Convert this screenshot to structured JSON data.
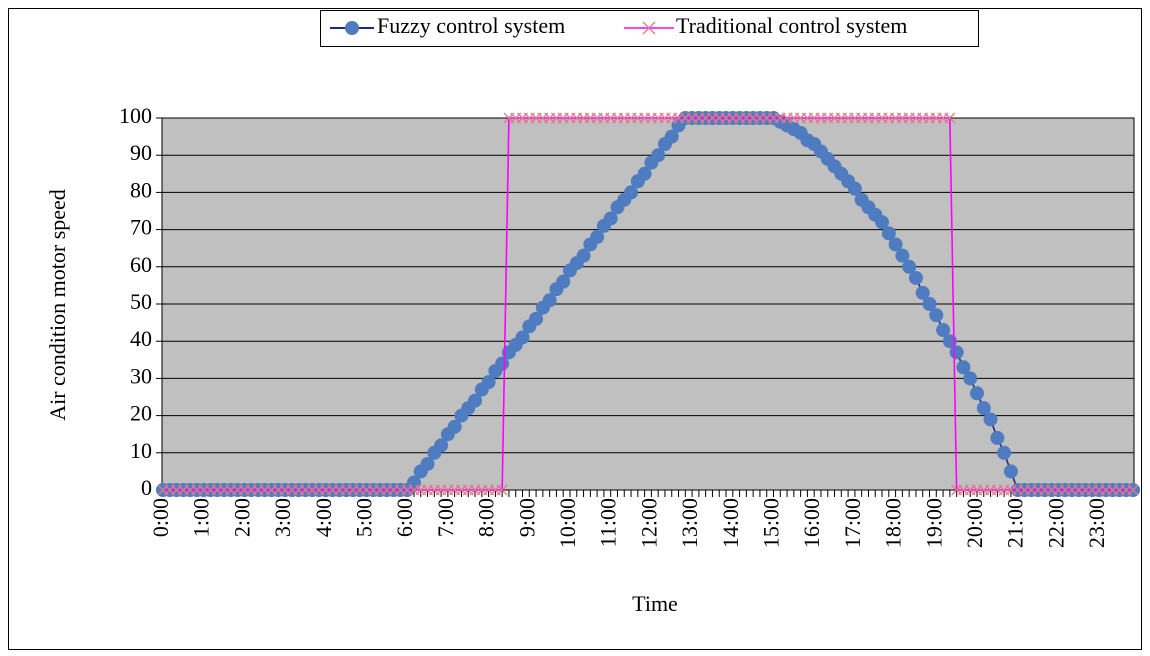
{
  "chart_data": {
    "type": "line",
    "xlabel": "Time",
    "ylabel": "Air condition  motor speed",
    "categories": [
      "0:00",
      null,
      null,
      null,
      null,
      null,
      "1:00",
      null,
      null,
      null,
      null,
      null,
      "2:00",
      null,
      null,
      null,
      null,
      null,
      "3:00",
      null,
      null,
      null,
      null,
      null,
      "4:00",
      null,
      null,
      null,
      null,
      null,
      "5:00",
      null,
      null,
      null,
      null,
      null,
      "6:00",
      null,
      null,
      null,
      null,
      null,
      "7:00",
      null,
      null,
      null,
      null,
      null,
      "8:00",
      null,
      null,
      null,
      null,
      null,
      "9:00",
      null,
      null,
      null,
      null,
      null,
      "10:00",
      null,
      null,
      null,
      null,
      null,
      "11:00",
      null,
      null,
      null,
      null,
      null,
      "12:00",
      null,
      null,
      null,
      null,
      null,
      "13:00",
      null,
      null,
      null,
      null,
      null,
      "14:00",
      null,
      null,
      null,
      null,
      null,
      "15:00",
      null,
      null,
      null,
      null,
      null,
      "16:00",
      null,
      null,
      null,
      null,
      null,
      "17:00",
      null,
      null,
      null,
      null,
      null,
      "18:00",
      null,
      null,
      null,
      null,
      null,
      "19:00",
      null,
      null,
      null,
      null,
      null,
      "20:00",
      null,
      null,
      null,
      null,
      null,
      "21:00",
      null,
      null,
      null,
      null,
      null,
      "22:00",
      null,
      null,
      null,
      null,
      null,
      "23:00",
      null,
      null,
      null,
      null,
      null
    ],
    "series": [
      {
        "name": "Fuzzy control system",
        "color": "#4f7cc0",
        "line_color": "#1f2a78",
        "marker": "circle",
        "values": [
          0,
          0,
          0,
          0,
          0,
          0,
          0,
          0,
          0,
          0,
          0,
          0,
          0,
          0,
          0,
          0,
          0,
          0,
          0,
          0,
          0,
          0,
          0,
          0,
          0,
          0,
          0,
          0,
          0,
          0,
          0,
          0,
          0,
          0,
          0,
          0,
          0,
          2,
          5,
          7,
          10,
          12,
          15,
          17,
          20,
          22,
          24,
          27,
          29,
          32,
          34,
          37,
          39,
          41,
          44,
          46,
          49,
          51,
          54,
          56,
          59,
          61,
          63,
          66,
          68,
          71,
          73,
          76,
          78,
          80,
          83,
          85,
          88,
          90,
          93,
          95,
          98,
          100,
          100,
          100,
          100,
          100,
          100,
          100,
          100,
          100,
          100,
          100,
          100,
          100,
          100,
          99,
          98,
          97,
          96,
          94,
          93,
          91,
          89,
          87,
          85,
          83,
          81,
          78,
          76,
          74,
          72,
          69,
          66,
          63,
          60,
          57,
          53,
          50,
          47,
          43,
          40,
          37,
          33,
          30,
          26,
          22,
          19,
          14,
          10,
          5,
          0,
          0,
          0,
          0,
          0,
          0,
          0,
          0,
          0,
          0,
          0,
          0,
          0,
          0,
          0,
          0,
          0,
          0
        ]
      },
      {
        "name": "Traditional control system",
        "color": "#ff00ff",
        "marker_color": "#e07a8a",
        "marker": "x",
        "values": [
          0,
          0,
          0,
          0,
          0,
          0,
          0,
          0,
          0,
          0,
          0,
          0,
          0,
          0,
          0,
          0,
          0,
          0,
          0,
          0,
          0,
          0,
          0,
          0,
          0,
          0,
          0,
          0,
          0,
          0,
          0,
          0,
          0,
          0,
          0,
          0,
          0,
          0,
          0,
          0,
          0,
          0,
          0,
          0,
          0,
          0,
          0,
          0,
          0,
          0,
          0,
          100,
          100,
          100,
          100,
          100,
          100,
          100,
          100,
          100,
          100,
          100,
          100,
          100,
          100,
          100,
          100,
          100,
          100,
          100,
          100,
          100,
          100,
          100,
          100,
          100,
          100,
          100,
          100,
          100,
          100,
          100,
          100,
          100,
          100,
          100,
          100,
          100,
          100,
          100,
          100,
          100,
          100,
          100,
          100,
          100,
          100,
          100,
          100,
          100,
          100,
          100,
          100,
          100,
          100,
          100,
          100,
          100,
          100,
          100,
          100,
          100,
          100,
          100,
          100,
          100,
          100,
          0,
          0,
          0,
          0,
          0,
          0,
          0,
          0,
          0,
          0,
          0,
          0,
          0,
          0,
          0,
          0,
          0,
          0,
          0,
          0,
          0,
          0,
          0,
          0,
          0,
          0,
          0
        ]
      }
    ],
    "ylim": [
      0,
      100
    ],
    "yticks": [
      0,
      10,
      20,
      30,
      40,
      50,
      60,
      70,
      80,
      90,
      100
    ],
    "grid": true,
    "plot_background": "#c0c0c0",
    "legend": "top"
  }
}
